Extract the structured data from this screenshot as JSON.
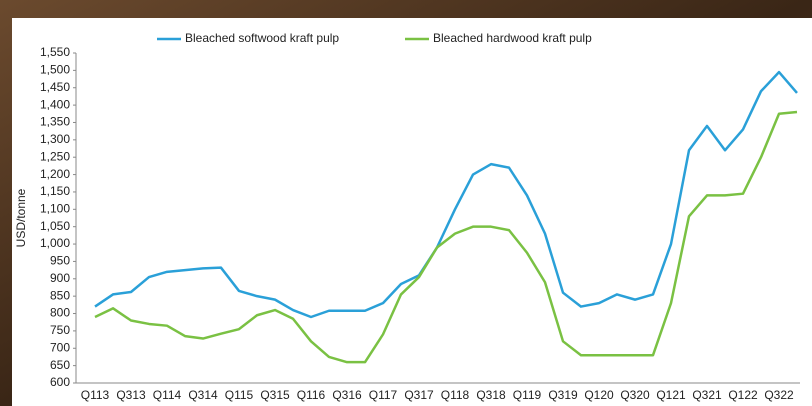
{
  "chart_data": {
    "type": "line",
    "y_label": "USD/tonne",
    "legend": "top",
    "categories": [
      "Q113",
      null,
      "Q313",
      null,
      "Q114",
      null,
      "Q314",
      null,
      "Q115",
      null,
      "Q315",
      null,
      "Q116",
      null,
      "Q316",
      null,
      "Q117",
      null,
      "Q317",
      null,
      "Q118",
      null,
      "Q318",
      null,
      "Q119",
      null,
      "Q319",
      null,
      "Q120",
      null,
      "Q320",
      null,
      "Q121",
      null,
      "Q321",
      null,
      "Q122",
      null,
      "Q322",
      null
    ],
    "series": [
      {
        "name": "Bleached softwood kraft pulp",
        "color": "#2aa0d8",
        "values": [
          820,
          855,
          862,
          905,
          920,
          925,
          930,
          932,
          865,
          850,
          840,
          810,
          790,
          808,
          808,
          808,
          830,
          885,
          910,
          990,
          1100,
          1200,
          1230,
          1220,
          1140,
          1030,
          860,
          820,
          830,
          855,
          840,
          855,
          1000,
          1270,
          1340,
          1270,
          1330,
          1440,
          1495,
          1435
        ]
      },
      {
        "name": "Bleached hardwood kraft pulp",
        "color": "#7ac143",
        "values": [
          790,
          815,
          780,
          770,
          765,
          735,
          728,
          742,
          755,
          795,
          810,
          785,
          720,
          675,
          660,
          660,
          740,
          855,
          905,
          990,
          1030,
          1050,
          1050,
          1040,
          975,
          890,
          720,
          680,
          680,
          680,
          680,
          680,
          830,
          1080,
          1140,
          1140,
          1145,
          1250,
          1375,
          1380
        ]
      }
    ],
    "ylim": [
      600,
      1550
    ],
    "yticks": [
      600,
      650,
      700,
      750,
      800,
      850,
      900,
      950,
      {
        "value": 1000,
        "label": "1,000"
      },
      {
        "value": 1050,
        "label": "1,050"
      },
      {
        "value": 1100,
        "label": "1,100"
      },
      {
        "value": 1150,
        "label": "1,150"
      },
      {
        "value": 1200,
        "label": "1,200"
      },
      {
        "value": 1250,
        "label": "1,250"
      },
      {
        "value": 1300,
        "label": "1,300"
      },
      {
        "value": 1350,
        "label": "1,350"
      },
      {
        "value": 1400,
        "label": "1,400"
      },
      {
        "value": 1450,
        "label": "1,450"
      },
      {
        "value": 1500,
        "label": "1,500"
      },
      {
        "value": 1550,
        "label": "1,550"
      }
    ]
  }
}
